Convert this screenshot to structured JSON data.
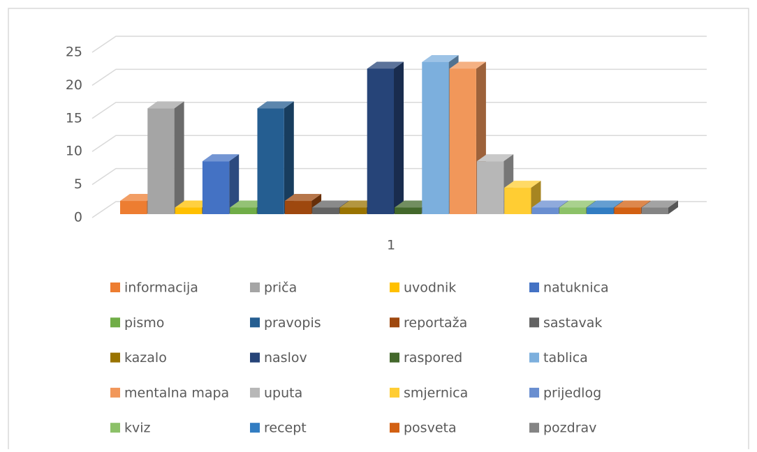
{
  "chart_data": {
    "type": "bar3d",
    "categories": [
      "1"
    ],
    "series": [
      {
        "name": "informacija",
        "color": "#ED7D31",
        "values": [
          2
        ]
      },
      {
        "name": "priča",
        "color": "#A5A5A5",
        "values": [
          16
        ]
      },
      {
        "name": "uvodnik",
        "color": "#FFC000",
        "values": [
          1
        ]
      },
      {
        "name": "natuknica",
        "color": "#4472C4",
        "values": [
          8
        ]
      },
      {
        "name": "pismo",
        "color": "#70AD47",
        "values": [
          1
        ]
      },
      {
        "name": "pravopis",
        "color": "#255E91",
        "values": [
          16
        ]
      },
      {
        "name": "reportaža",
        "color": "#9E480E",
        "values": [
          2
        ]
      },
      {
        "name": "sastavak",
        "color": "#636363",
        "values": [
          1
        ]
      },
      {
        "name": "kazalo",
        "color": "#997300",
        "values": [
          1
        ]
      },
      {
        "name": "naslov",
        "color": "#264478",
        "values": [
          22
        ]
      },
      {
        "name": "raspored",
        "color": "#43682B",
        "values": [
          1
        ]
      },
      {
        "name": "tablica",
        "color": "#7CAFDD",
        "values": [
          23
        ]
      },
      {
        "name": "mentalna mapa",
        "color": "#F1975A",
        "values": [
          22
        ]
      },
      {
        "name": "uputa",
        "color": "#B7B7B7",
        "values": [
          8
        ]
      },
      {
        "name": "smjernica",
        "color": "#FFCD33",
        "values": [
          4
        ]
      },
      {
        "name": "prijedlog",
        "color": "#698ED0",
        "values": [
          1
        ]
      },
      {
        "name": "kviz",
        "color": "#8CC168",
        "values": [
          1
        ]
      },
      {
        "name": "recept",
        "color": "#327DC2",
        "values": [
          1
        ]
      },
      {
        "name": "posveta",
        "color": "#D26012",
        "values": [
          1
        ]
      },
      {
        "name": "pozdrav",
        "color": "#848484",
        "values": [
          1
        ]
      }
    ],
    "ylim": [
      0,
      25
    ],
    "yticks": [
      0,
      5,
      10,
      15,
      20,
      25
    ],
    "grid": true
  }
}
